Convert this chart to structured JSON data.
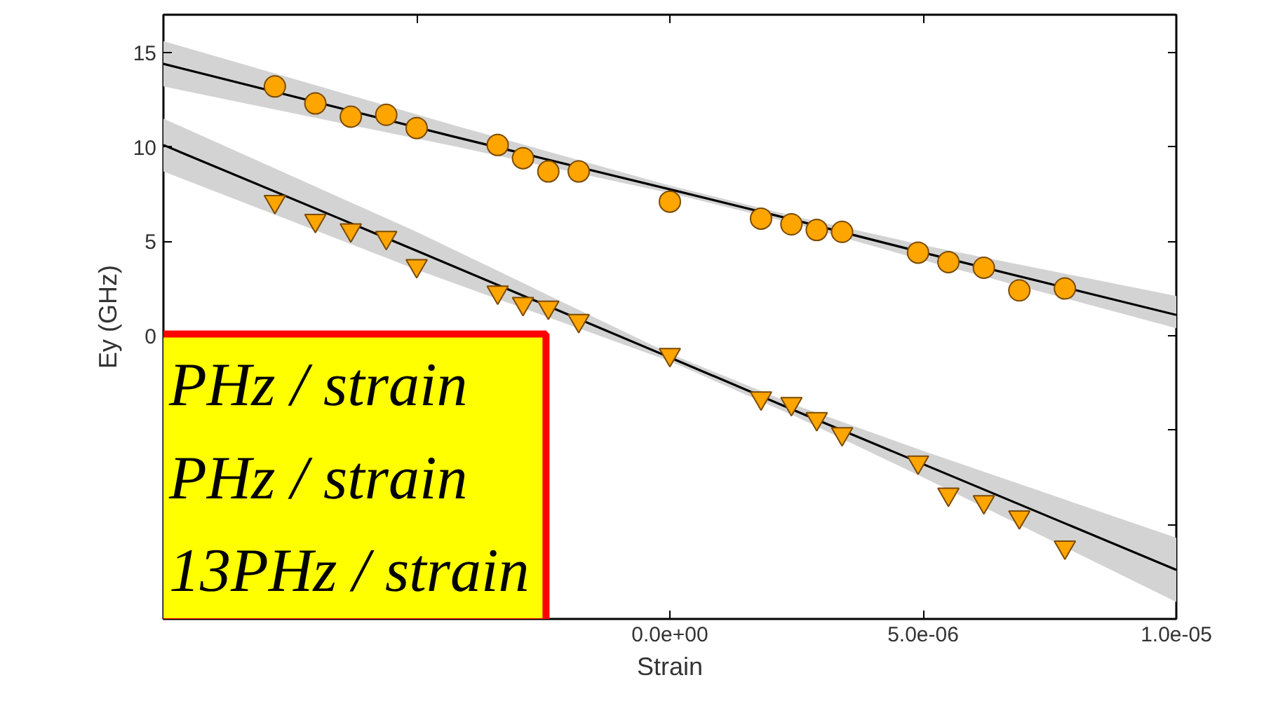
{
  "chart_data": {
    "type": "scatter",
    "xlabel": "Strain",
    "ylabel": "Ey (GHz)",
    "xlim": [
      -1e-05,
      1e-05
    ],
    "ylim": [
      -15,
      17
    ],
    "xticks": [
      {
        "value": -1e-05,
        "label": null
      },
      {
        "value": -5e-06,
        "label": null
      },
      {
        "value": 0,
        "label": "0.0e+00"
      },
      {
        "value": 5e-06,
        "label": "5.0e-06"
      },
      {
        "value": 1e-05,
        "label": "1.0e-05"
      }
    ],
    "yticks": [
      {
        "value": -10,
        "label": null
      },
      {
        "value": -5,
        "label": null
      },
      0,
      5,
      10,
      15
    ],
    "grid": false,
    "series": [
      {
        "type": "line",
        "color": "#000000",
        "line_style": "solid",
        "marker": "none",
        "x": [
          -1e-05,
          -4.2e-06,
          0,
          2.5e-06,
          5e-06,
          1e-05
        ],
        "values": [
          14.4,
          10.5,
          7.75,
          6.1,
          4.4,
          1.1
        ],
        "lower": [
          13.2,
          10.0,
          7.55,
          5.9,
          4.0,
          0.4
        ],
        "upper": [
          15.6,
          11.1,
          7.95,
          6.3,
          4.8,
          2.1
        ]
      },
      {
        "type": "line",
        "color": "#000000",
        "line_style": "solid",
        "marker": "none",
        "x": [
          -1e-05,
          -5e-06,
          0,
          2.5e-06,
          5e-06,
          1e-05
        ],
        "values": [
          10.1,
          4.5,
          -1.15,
          -4.0,
          -6.8,
          -12.4
        ],
        "lower": [
          8.7,
          3.5,
          -1.35,
          -4.3,
          -7.5,
          -14.1
        ],
        "upper": [
          11.5,
          5.5,
          -0.95,
          -3.7,
          -6.1,
          -10.7
        ]
      },
      {
        "type": "scatter",
        "color": "#ffa500",
        "marker": "circle",
        "x": [
          -7.8e-06,
          -7e-06,
          -6.3e-06,
          -5.6e-06,
          -5e-06,
          -3.4e-06,
          -2.9e-06,
          -2.4e-06,
          -1.8e-06,
          0,
          1.8e-06,
          2.4e-06,
          2.9e-06,
          3.4e-06,
          4.9e-06,
          5.5e-06,
          6.2e-06,
          6.9e-06,
          7.8e-06
        ],
        "values": [
          13.2,
          12.3,
          11.6,
          11.7,
          11.0,
          10.1,
          9.4,
          8.7,
          8.7,
          7.1,
          6.2,
          5.9,
          5.6,
          5.5,
          4.4,
          3.9,
          3.6,
          2.4,
          2.5
        ]
      },
      {
        "type": "scatter",
        "color": "#ffa500",
        "marker": "triangle",
        "x": [
          -7.8e-06,
          -7e-06,
          -6.3e-06,
          -5.6e-06,
          -5e-06,
          -3.4e-06,
          -2.9e-06,
          -2.4e-06,
          -1.8e-06,
          0,
          1.8e-06,
          2.4e-06,
          2.9e-06,
          3.4e-06,
          4.9e-06,
          5.5e-06,
          6.2e-06,
          6.9e-06,
          7.8e-06
        ],
        "values": [
          7.1,
          6.1,
          5.6,
          5.2,
          3.7,
          2.3,
          1.7,
          1.5,
          0.8,
          -1.0,
          -3.3,
          -3.6,
          -4.4,
          -5.2,
          -6.7,
          -8.4,
          -8.8,
          -9.6,
          -11.2
        ]
      }
    ],
    "annotations": [
      "PHz / strain",
      "PHz / strain",
      "13PHz / strain"
    ]
  }
}
